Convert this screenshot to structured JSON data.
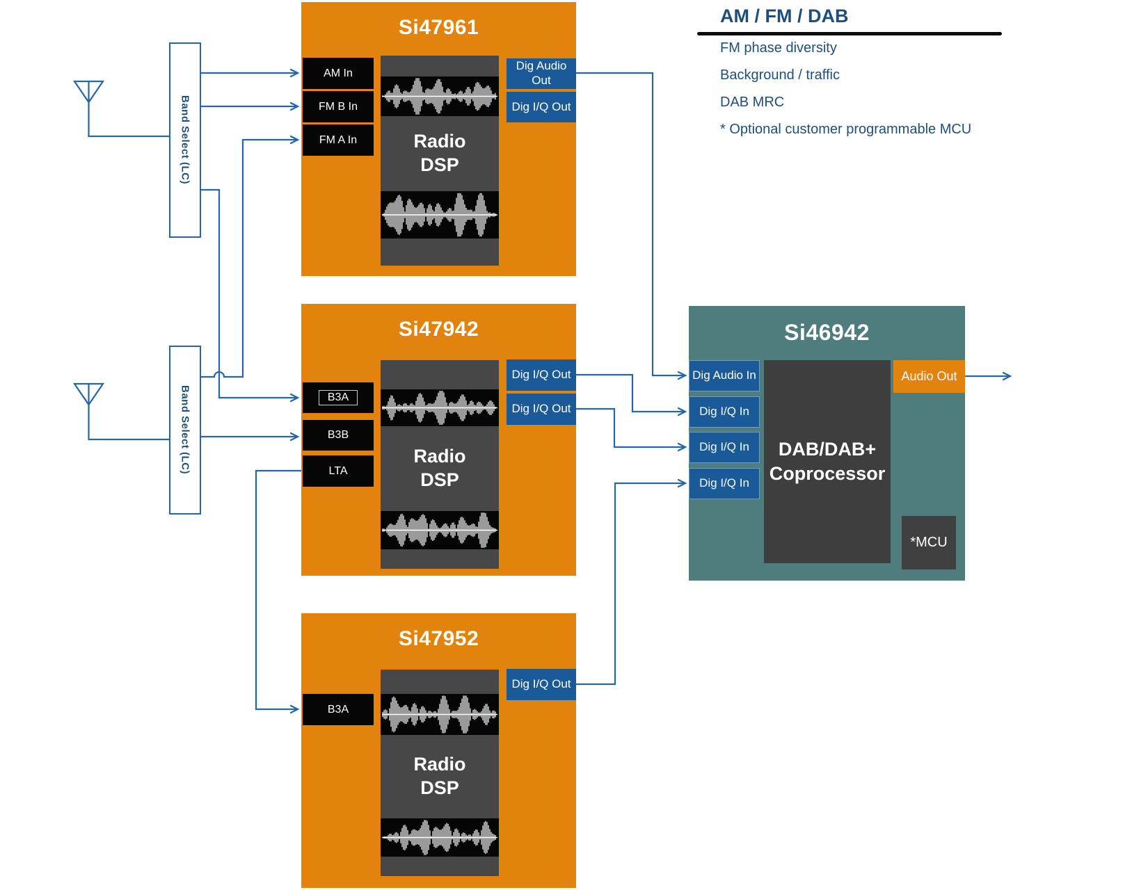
{
  "legend": {
    "title": "AM / FM / DAB",
    "items": [
      "FM phase diversity",
      "Background / traffic",
      "DAB MRC",
      "* Optional customer programmable MCU"
    ]
  },
  "band_select": {
    "label": "Band Select (LC)"
  },
  "chips": {
    "si47961": {
      "title": "Si47961",
      "inputs": [
        "AM In",
        "FM B In",
        "FM A In"
      ],
      "dsp_label": "Radio DSP",
      "outputs": [
        "Dig Audio Out",
        "Dig I/Q Out"
      ]
    },
    "si47942": {
      "title": "Si47942",
      "inputs": [
        "B3A",
        "B3B",
        "LTA"
      ],
      "dsp_label": "Radio DSP",
      "outputs": [
        "Dig I/Q Out",
        "Dig I/Q Out"
      ]
    },
    "si47952": {
      "title": "Si47952",
      "inputs": [
        "B3A"
      ],
      "dsp_label": "Radio DSP",
      "outputs": [
        "Dig I/Q Out"
      ]
    },
    "si46942": {
      "title": "Si46942",
      "inputs": [
        "Dig Audio In",
        "Dig I/Q In",
        "Dig I/Q In",
        "Dig I/Q In"
      ],
      "core_label": "DAB/DAB+ Coprocessor",
      "outputs": [
        "Audio Out"
      ],
      "mcu_label": "*MCU"
    }
  },
  "colors": {
    "chip_orange": "#E2830E",
    "io_blue": "#1A5A99",
    "chip_teal": "#4F7C7C",
    "dsp_gray": "#474747",
    "coprocessor_gray": "#3E3E3E",
    "input_black": "#060606",
    "wire_blue": "#2565A8",
    "legend_text": "#1F4E79",
    "background": "#FFFFFF"
  }
}
